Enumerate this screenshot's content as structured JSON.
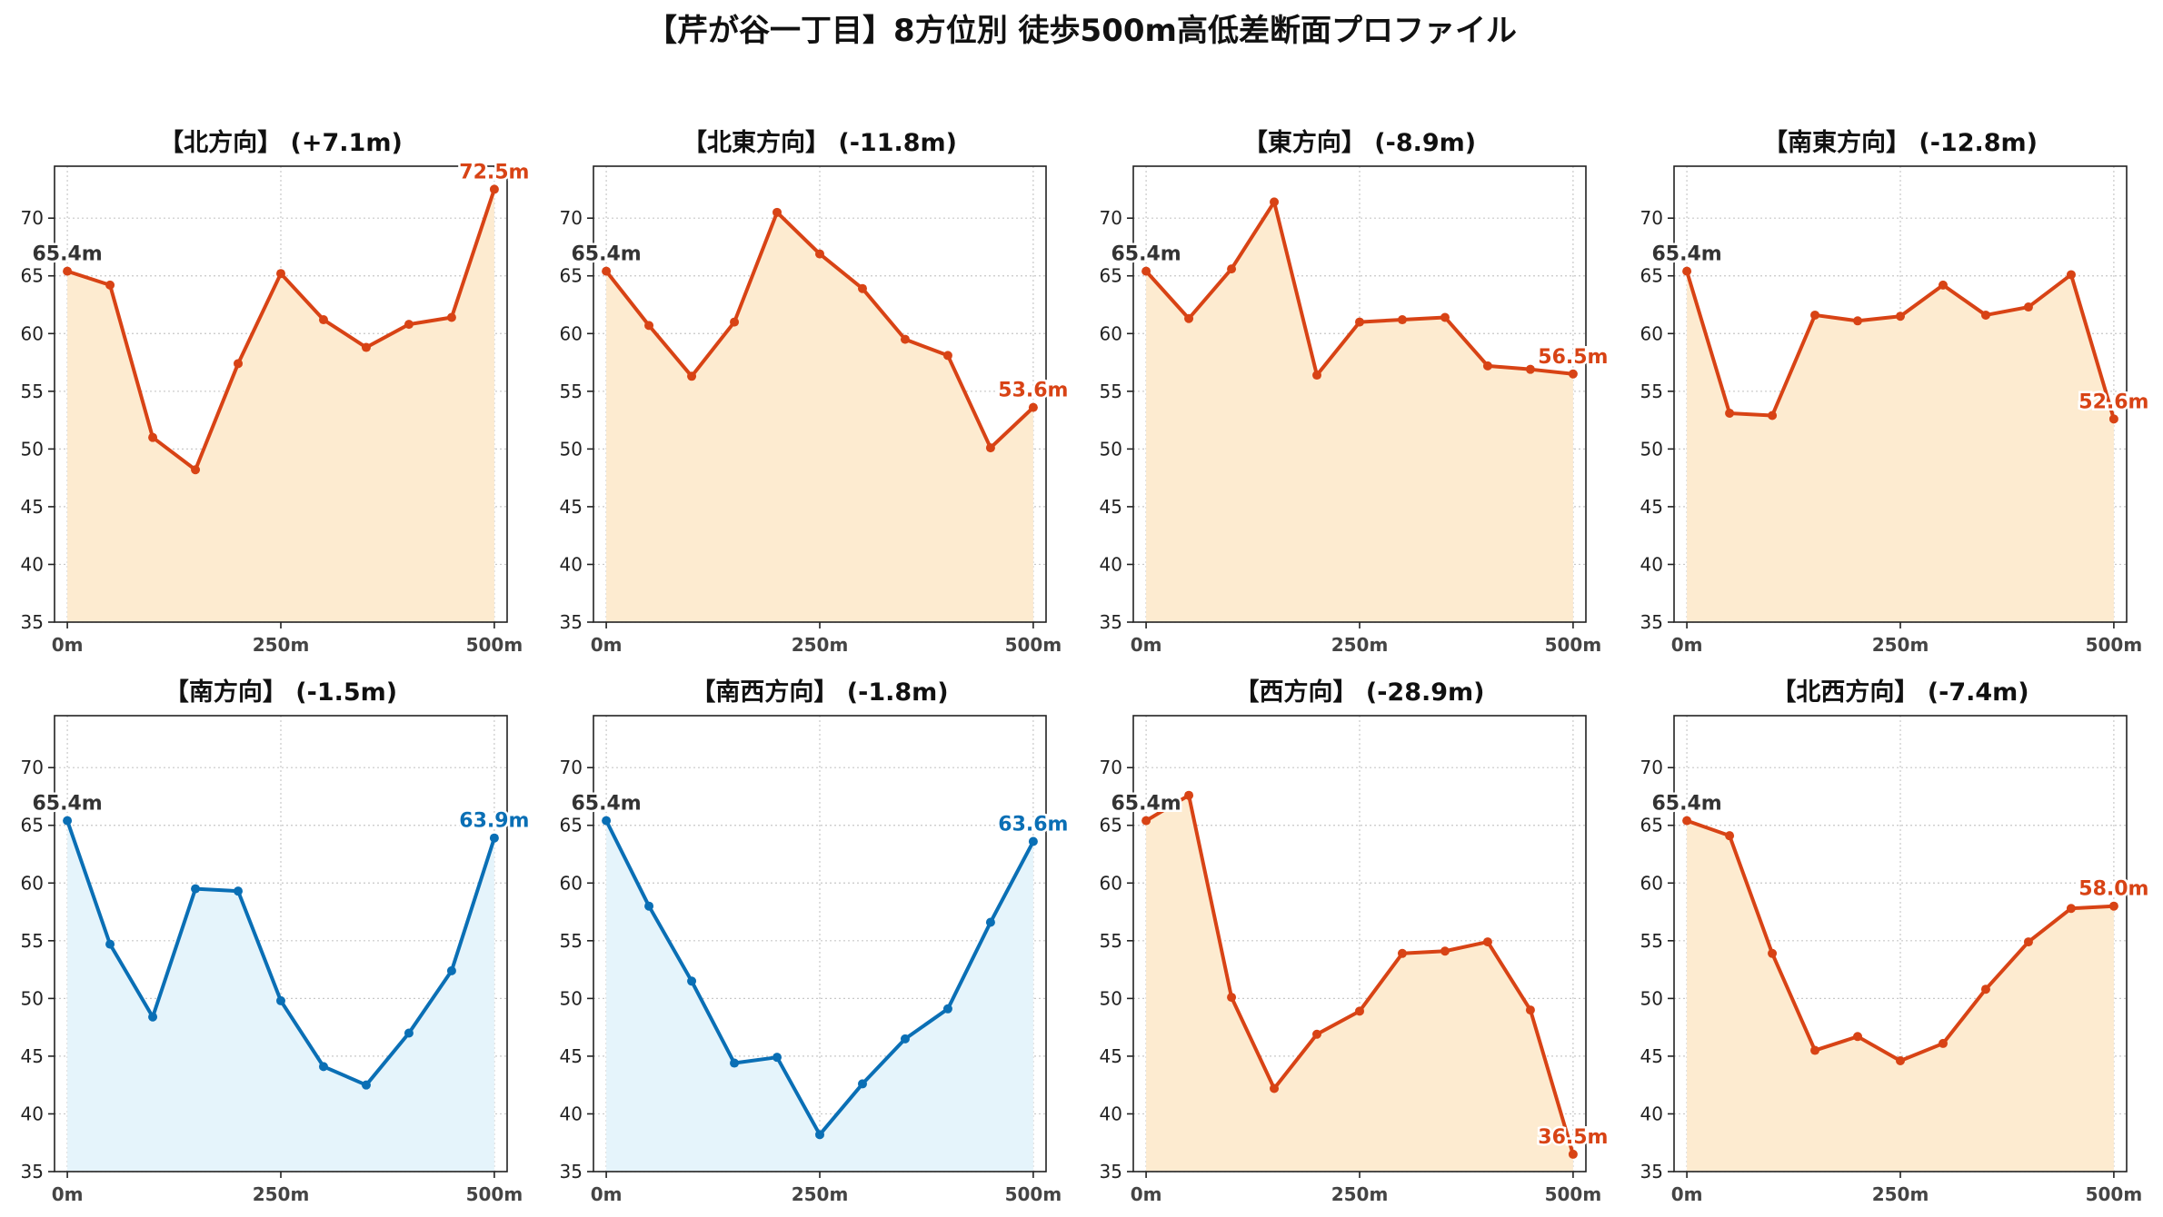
{
  "figure": {
    "title": "【芹が谷一丁目】8方位別 徒歩500m高低差断面プロファイル"
  },
  "chart_data": [
    {
      "type": "line",
      "title": "【北方向】 (+7.1m)",
      "x": [
        0,
        50,
        100,
        150,
        200,
        250,
        300,
        350,
        400,
        450,
        500
      ],
      "values": [
        65.4,
        64.2,
        51.0,
        48.2,
        57.4,
        65.2,
        61.2,
        58.8,
        60.8,
        61.4,
        72.5
      ],
      "start_label": "65.4m",
      "end_label": "72.5m",
      "xticks": [
        "0m",
        "250m",
        "500m"
      ],
      "xlim": [
        -15,
        515
      ],
      "ylim": [
        35,
        74.5
      ],
      "yticks": [
        35,
        40,
        45,
        50,
        55,
        60,
        65,
        70
      ],
      "grid": true,
      "color": "#d84315",
      "fill": "#fdebd0"
    },
    {
      "type": "line",
      "title": "【北東方向】 (-11.8m)",
      "x": [
        0,
        50,
        100,
        150,
        200,
        250,
        300,
        350,
        400,
        450,
        500
      ],
      "values": [
        65.4,
        60.7,
        56.3,
        61.0,
        70.5,
        66.9,
        63.9,
        59.5,
        58.1,
        50.1,
        53.6
      ],
      "start_label": "65.4m",
      "end_label": "53.6m",
      "xticks": [
        "0m",
        "250m",
        "500m"
      ],
      "xlim": [
        -15,
        515
      ],
      "ylim": [
        35,
        74.5
      ],
      "yticks": [
        35,
        40,
        45,
        50,
        55,
        60,
        65,
        70
      ],
      "grid": true,
      "color": "#d84315",
      "fill": "#fdebd0"
    },
    {
      "type": "line",
      "title": "【東方向】 (-8.9m)",
      "x": [
        0,
        50,
        100,
        150,
        200,
        250,
        300,
        350,
        400,
        450,
        500
      ],
      "values": [
        65.4,
        61.3,
        65.6,
        71.4,
        56.4,
        61.0,
        61.2,
        61.4,
        57.2,
        56.9,
        56.5
      ],
      "start_label": "65.4m",
      "end_label": "56.5m",
      "xticks": [
        "0m",
        "250m",
        "500m"
      ],
      "xlim": [
        -15,
        515
      ],
      "ylim": [
        35,
        74.5
      ],
      "yticks": [
        35,
        40,
        45,
        50,
        55,
        60,
        65,
        70
      ],
      "grid": true,
      "color": "#d84315",
      "fill": "#fdebd0"
    },
    {
      "type": "line",
      "title": "【南東方向】 (-12.8m)",
      "x": [
        0,
        50,
        100,
        150,
        200,
        250,
        300,
        350,
        400,
        450,
        500
      ],
      "values": [
        65.4,
        53.1,
        52.9,
        61.6,
        61.1,
        61.5,
        64.2,
        61.6,
        62.3,
        65.1,
        52.6
      ],
      "start_label": "65.4m",
      "end_label": "52.6m",
      "xticks": [
        "0m",
        "250m",
        "500m"
      ],
      "xlim": [
        -15,
        515
      ],
      "ylim": [
        35,
        74.5
      ],
      "yticks": [
        35,
        40,
        45,
        50,
        55,
        60,
        65,
        70
      ],
      "grid": true,
      "color": "#d84315",
      "fill": "#fdebd0"
    },
    {
      "type": "line",
      "title": "【南方向】 (-1.5m)",
      "x": [
        0,
        50,
        100,
        150,
        200,
        250,
        300,
        350,
        400,
        450,
        500
      ],
      "values": [
        65.4,
        54.7,
        48.4,
        59.5,
        59.3,
        49.8,
        44.1,
        42.5,
        47.0,
        52.4,
        63.9
      ],
      "start_label": "65.4m",
      "end_label": "63.9m",
      "xticks": [
        "0m",
        "250m",
        "500m"
      ],
      "xlim": [
        -15,
        515
      ],
      "ylim": [
        35,
        74.5
      ],
      "yticks": [
        35,
        40,
        45,
        50,
        55,
        60,
        65,
        70
      ],
      "grid": true,
      "color": "#0a6fb5",
      "fill": "#e5f4fb"
    },
    {
      "type": "line",
      "title": "【南西方向】 (-1.8m)",
      "x": [
        0,
        50,
        100,
        150,
        200,
        250,
        300,
        350,
        400,
        450,
        500
      ],
      "values": [
        65.4,
        58.0,
        51.5,
        44.4,
        44.9,
        38.2,
        42.6,
        46.5,
        49.1,
        56.6,
        63.6
      ],
      "start_label": "65.4m",
      "end_label": "63.6m",
      "xticks": [
        "0m",
        "250m",
        "500m"
      ],
      "xlim": [
        -15,
        515
      ],
      "ylim": [
        35,
        74.5
      ],
      "yticks": [
        35,
        40,
        45,
        50,
        55,
        60,
        65,
        70
      ],
      "grid": true,
      "color": "#0a6fb5",
      "fill": "#e5f4fb"
    },
    {
      "type": "line",
      "title": "【西方向】 (-28.9m)",
      "x": [
        0,
        50,
        100,
        150,
        200,
        250,
        300,
        350,
        400,
        450,
        500
      ],
      "values": [
        65.4,
        67.6,
        50.1,
        42.2,
        46.9,
        48.9,
        53.9,
        54.1,
        54.9,
        49.0,
        36.5
      ],
      "start_label": "65.4m",
      "end_label": "36.5m",
      "xticks": [
        "0m",
        "250m",
        "500m"
      ],
      "xlim": [
        -15,
        515
      ],
      "ylim": [
        35,
        74.5
      ],
      "yticks": [
        35,
        40,
        45,
        50,
        55,
        60,
        65,
        70
      ],
      "grid": true,
      "color": "#d84315",
      "fill": "#fdebd0"
    },
    {
      "type": "line",
      "title": "【北西方向】 (-7.4m)",
      "x": [
        0,
        50,
        100,
        150,
        200,
        250,
        300,
        350,
        400,
        450,
        500
      ],
      "values": [
        65.4,
        64.1,
        53.9,
        45.5,
        46.7,
        44.6,
        46.1,
        50.8,
        54.9,
        57.8,
        58.0
      ],
      "start_label": "65.4m",
      "end_label": "58.0m",
      "xticks": [
        "0m",
        "250m",
        "500m"
      ],
      "xlim": [
        -15,
        515
      ],
      "ylim": [
        35,
        74.5
      ],
      "yticks": [
        35,
        40,
        45,
        50,
        55,
        60,
        65,
        70
      ],
      "grid": true,
      "color": "#d84315",
      "fill": "#fdebd0"
    }
  ]
}
